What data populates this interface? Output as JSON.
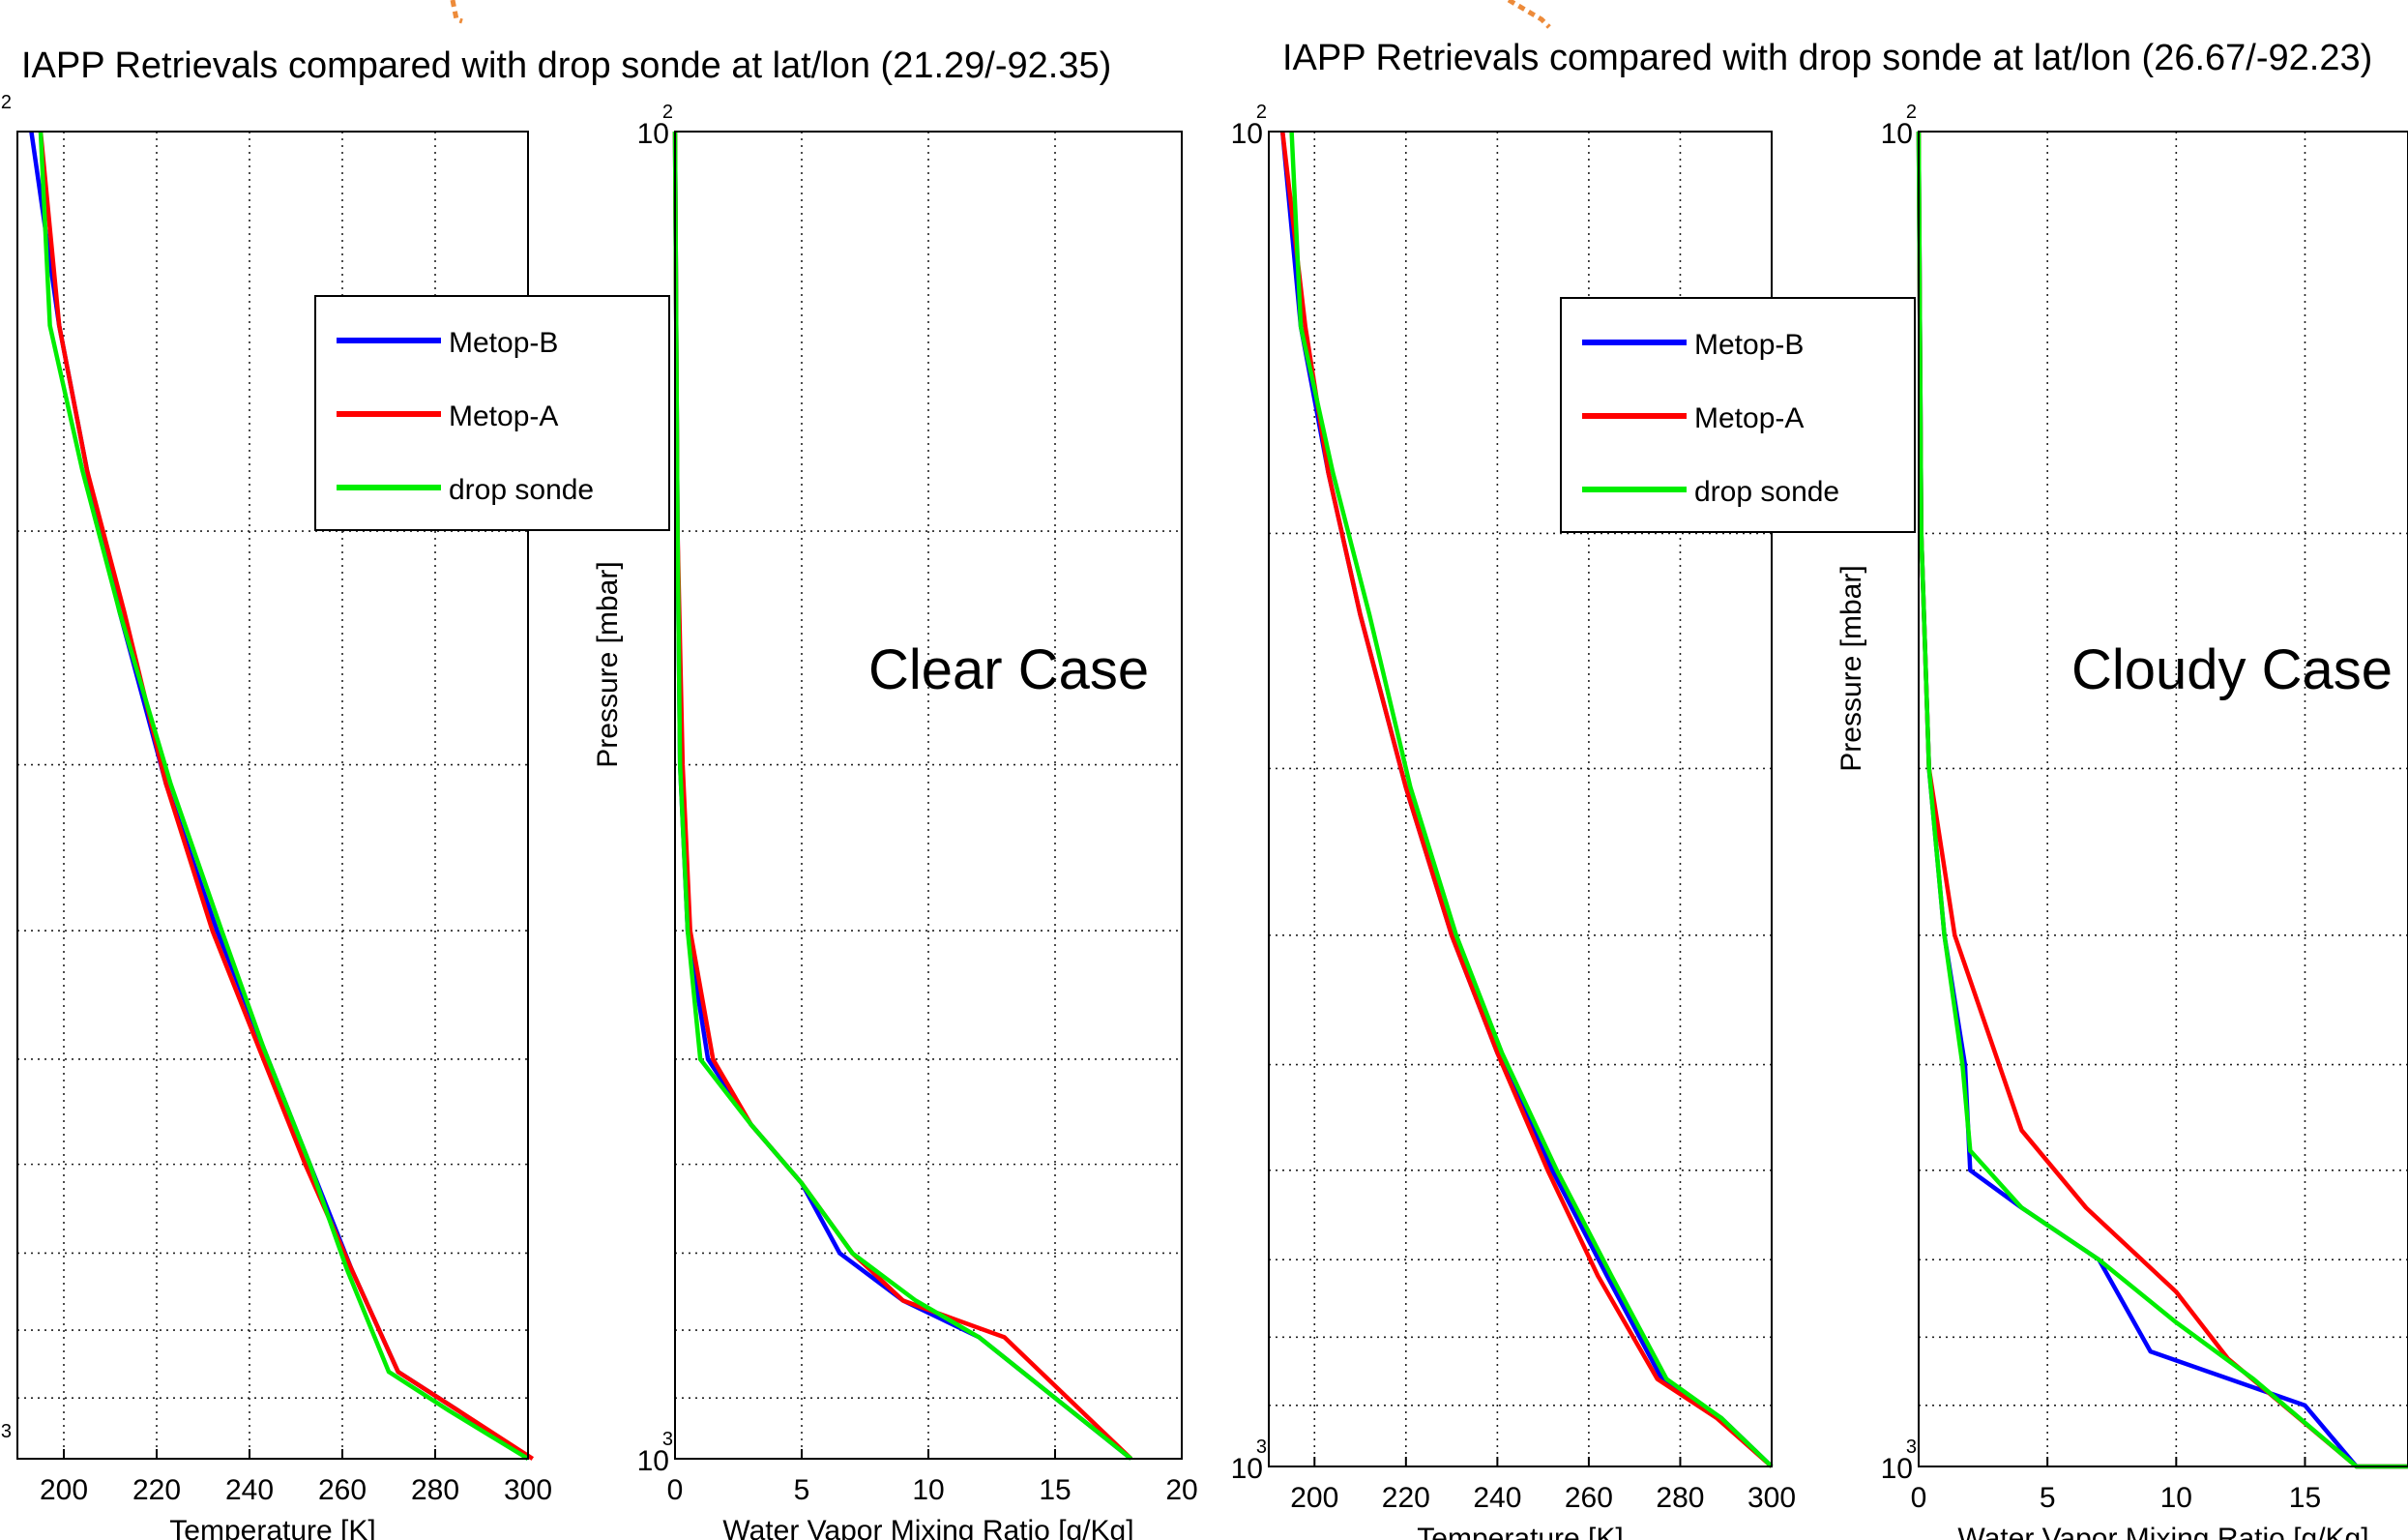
{
  "colors": {
    "metop_b": "#0000ff",
    "metop_a": "#ff0000",
    "drop_sonde": "#00ee00",
    "arrow": "#ed8b3a"
  },
  "chart_data": [
    {
      "type": "line",
      "title": "IAPP Retrievals compared with drop sonde at lat/lon (21.29/-92.35)",
      "xlabel": "Temperature [K]",
      "ylabel": "",
      "xlim": [
        190,
        300
      ],
      "xticks": [
        200,
        220,
        240,
        260,
        280,
        300
      ],
      "yscale": "log",
      "ylim": [
        100,
        1000
      ],
      "grid": true,
      "series": [
        {
          "name": "Metop-B",
          "points": [
            [
              193,
              100
            ],
            [
              199,
              140
            ],
            [
              205,
              180
            ],
            [
              212,
              230
            ],
            [
              222,
              310
            ],
            [
              233,
              400
            ],
            [
              243,
              490
            ],
            [
              253,
              600
            ],
            [
              262,
              720
            ],
            [
              272,
              860
            ],
            [
              285,
              920
            ],
            [
              300,
              1000
            ]
          ]
        },
        {
          "name": "Metop-A",
          "points": [
            [
              195,
              100
            ],
            [
              199,
              140
            ],
            [
              205,
              180
            ],
            [
              213,
              230
            ],
            [
              222,
              310
            ],
            [
              232,
              400
            ],
            [
              242,
              490
            ],
            [
              252,
              600
            ],
            [
              262,
              720
            ],
            [
              272,
              860
            ],
            [
              285,
              920
            ],
            [
              301,
              1000
            ]
          ]
        },
        {
          "name": "drop sonde",
          "points": [
            [
              195,
              100
            ],
            [
              197,
              140
            ],
            [
              204,
              180
            ],
            [
              212,
              230
            ],
            [
              223,
              310
            ],
            [
              234,
              400
            ],
            [
              243,
              490
            ],
            [
              253,
              600
            ],
            [
              261,
              720
            ],
            [
              270,
              860
            ],
            [
              283,
              920
            ],
            [
              300,
              1000
            ]
          ]
        }
      ]
    },
    {
      "type": "line",
      "title": "",
      "xlabel": "Water Vapor Mixing Ratio [g/Kg]",
      "ylabel": "Pressure [mbar]",
      "annotation": "Clear Case",
      "xlim": [
        0,
        20
      ],
      "xticks": [
        0,
        5,
        10,
        15,
        20
      ],
      "yscale": "log",
      "ylim": [
        100,
        1000
      ],
      "grid": true,
      "series": [
        {
          "name": "Metop-B",
          "points": [
            [
              0,
              100
            ],
            [
              0.1,
              200
            ],
            [
              0.2,
              300
            ],
            [
              0.5,
              400
            ],
            [
              1.3,
              500
            ],
            [
              3,
              560
            ],
            [
              5,
              620
            ],
            [
              6.5,
              700
            ],
            [
              9,
              760
            ],
            [
              12,
              810
            ],
            [
              18,
              1000
            ]
          ]
        },
        {
          "name": "Metop-A",
          "points": [
            [
              0,
              100
            ],
            [
              0.1,
              200
            ],
            [
              0.3,
              300
            ],
            [
              0.6,
              400
            ],
            [
              1.5,
              500
            ],
            [
              3,
              560
            ],
            [
              5,
              620
            ],
            [
              7,
              700
            ],
            [
              9,
              760
            ],
            [
              13,
              810
            ],
            [
              18,
              1000
            ]
          ]
        },
        {
          "name": "drop sonde",
          "points": [
            [
              0,
              100
            ],
            [
              0.1,
              200
            ],
            [
              0.2,
              300
            ],
            [
              0.5,
              400
            ],
            [
              1,
              500
            ],
            [
              3,
              560
            ],
            [
              5,
              620
            ],
            [
              7,
              700
            ],
            [
              9.5,
              760
            ],
            [
              12,
              810
            ],
            [
              18,
              1000
            ]
          ]
        }
      ]
    },
    {
      "type": "line",
      "title": "IAPP Retrievals compared with drop sonde at lat/lon (26.67/-92.23)",
      "xlabel": "Temperature [K]",
      "ylabel": "",
      "xlim": [
        190,
        300
      ],
      "xticks": [
        200,
        220,
        240,
        260,
        280,
        300
      ],
      "yscale": "log",
      "ylim": [
        100,
        1000
      ],
      "grid": true,
      "series": [
        {
          "name": "Metop-B",
          "points": [
            [
              193,
              100
            ],
            [
              197,
              140
            ],
            [
              203,
              180
            ],
            [
              210,
              230
            ],
            [
              220,
              310
            ],
            [
              230,
              400
            ],
            [
              240,
              490
            ],
            [
              252,
              600
            ],
            [
              264,
              720
            ],
            [
              276,
              860
            ],
            [
              289,
              920
            ],
            [
              300,
              1000
            ]
          ]
        },
        {
          "name": "Metop-A",
          "points": [
            [
              193,
              100
            ],
            [
              198,
              140
            ],
            [
              203,
              180
            ],
            [
              210,
              230
            ],
            [
              220,
              310
            ],
            [
              230,
              400
            ],
            [
              240,
              490
            ],
            [
              251,
              600
            ],
            [
              262,
              720
            ],
            [
              275,
              860
            ],
            [
              288,
              920
            ],
            [
              300,
              1000
            ]
          ]
        },
        {
          "name": "drop sonde",
          "points": [
            [
              195,
              100
            ],
            [
              197,
              140
            ],
            [
              204,
              180
            ],
            [
              212,
              230
            ],
            [
              221,
              310
            ],
            [
              231,
              400
            ],
            [
              241,
              490
            ],
            [
              253,
              600
            ],
            [
              265,
              720
            ],
            [
              277,
              860
            ],
            [
              289,
              920
            ],
            [
              300,
              1000
            ]
          ]
        }
      ]
    },
    {
      "type": "line",
      "title": "",
      "xlabel": "Water Vapor Mixing Ratio [g/Kg]",
      "ylabel": "Pressure [mbar]",
      "annotation": "Cloudy Case",
      "xlim": [
        0,
        19
      ],
      "xticks": [
        0,
        5,
        10,
        15
      ],
      "yscale": "log",
      "ylim": [
        100,
        1000
      ],
      "grid": true,
      "series": [
        {
          "name": "Metop-B",
          "points": [
            [
              0,
              100
            ],
            [
              0.1,
              200
            ],
            [
              0.4,
              300
            ],
            [
              1,
              400
            ],
            [
              1.8,
              500
            ],
            [
              2,
              600
            ],
            [
              4,
              640
            ],
            [
              7,
              700
            ],
            [
              9,
              820
            ],
            [
              15,
              900
            ],
            [
              17,
              1000
            ],
            [
              19,
              1000
            ]
          ]
        },
        {
          "name": "Metop-A",
          "points": [
            [
              0,
              100
            ],
            [
              0.1,
              200
            ],
            [
              0.4,
              300
            ],
            [
              1.4,
              400
            ],
            [
              4,
              560
            ],
            [
              6.5,
              640
            ],
            [
              10,
              740
            ],
            [
              12,
              830
            ],
            [
              17,
              1000
            ],
            [
              19,
              1000
            ]
          ]
        },
        {
          "name": "drop sonde",
          "points": [
            [
              0,
              100
            ],
            [
              0.1,
              200
            ],
            [
              0.4,
              300
            ],
            [
              1,
              400
            ],
            [
              1.7,
              500
            ],
            [
              2,
              580
            ],
            [
              4,
              640
            ],
            [
              7,
              700
            ],
            [
              10,
              780
            ],
            [
              13,
              860
            ],
            [
              17,
              1000
            ],
            [
              19,
              1000
            ]
          ]
        }
      ]
    }
  ],
  "legend": {
    "items": [
      "Metop-B",
      "Metop-A",
      "drop sonde"
    ]
  },
  "exponent": {
    "base": "10",
    "top": "2",
    "bottom": "3"
  }
}
